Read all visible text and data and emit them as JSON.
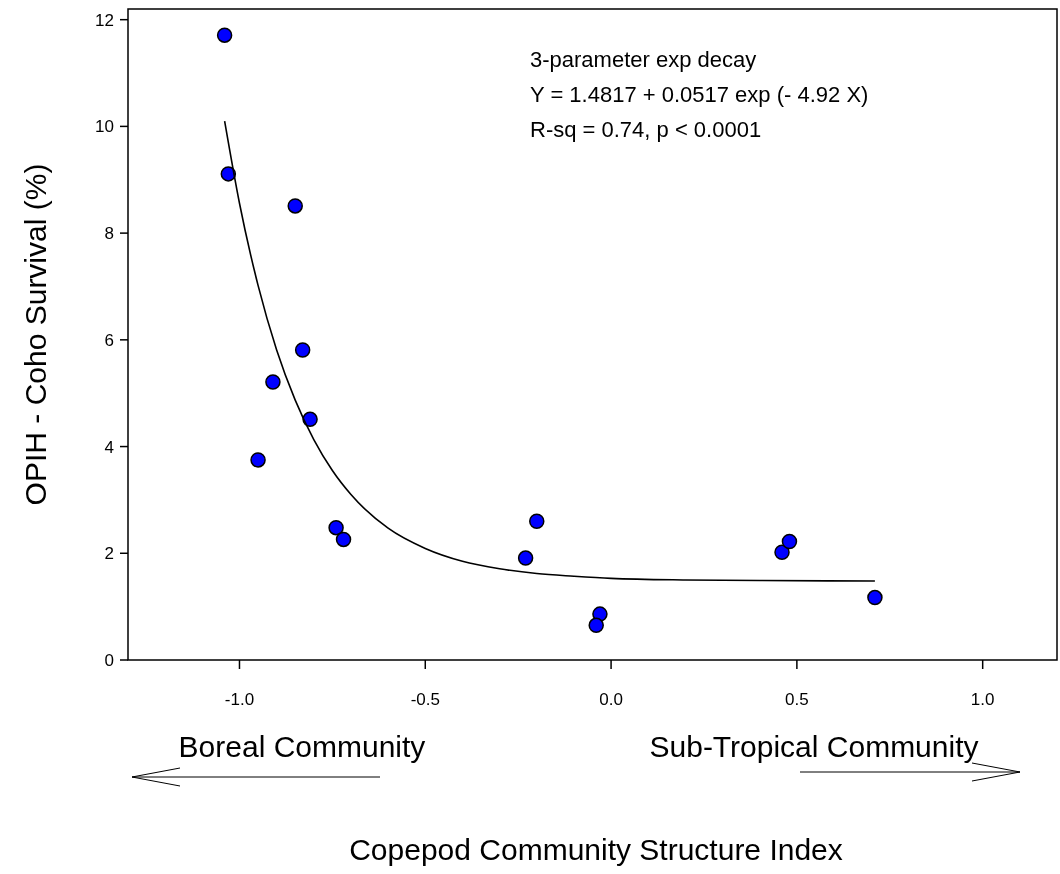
{
  "chart_data": {
    "type": "scatter",
    "xlabel": "Copepod Community Structure Index",
    "ylabel": "OPIH - Coho Survival (%)",
    "annotations": [
      "3-parameter exp decay",
      "Y = 1.4817 + 0.0517 exp (- 4.92 X)",
      "R-sq = 0.74, p < 0.0001",
      "Boreal Community",
      "Sub-Tropical Community"
    ],
    "xlim": [
      -1.3,
      1.2
    ],
    "ylim": [
      0,
      12.2
    ],
    "xticks": [
      {
        "value": -1,
        "label": "-1.0"
      },
      {
        "value": -0.5,
        "label": "-0.5"
      },
      {
        "value": 0,
        "label": "0.0"
      },
      {
        "value": 0.5,
        "label": "0.5"
      },
      {
        "value": 1,
        "label": "1.0"
      }
    ],
    "yticks": [
      0,
      2,
      4,
      6,
      8,
      10,
      12
    ],
    "grid": false,
    "marker": "circle",
    "series": [
      {
        "color": "#0000ff",
        "x": [
          -1.04,
          -1.03,
          -0.85,
          -0.83,
          -0.91,
          -0.81,
          -0.95,
          -0.74,
          -0.72,
          -0.23,
          -0.2,
          -0.03,
          -0.04,
          0.46,
          0.48,
          0.71
        ],
        "values": [
          11.71,
          9.11,
          8.51,
          5.81,
          5.21,
          4.51,
          3.75,
          2.48,
          2.26,
          1.91,
          2.6,
          0.86,
          0.65,
          2.02,
          2.22,
          1.17
        ]
      },
      {
        "type": "line",
        "color": "#000000",
        "line_style": "solid",
        "marker": "none",
        "x": [
          -1.04,
          -1,
          -0.95,
          -0.9,
          -0.85,
          -0.8,
          -0.75,
          -0.7,
          -0.6,
          -0.5,
          -0.4,
          -0.3,
          -0.2,
          -0.1,
          0,
          0.2,
          0.4,
          0.71
        ],
        "values": [
          10.1,
          8.56,
          7.02,
          5.81,
          4.87,
          4.13,
          3.55,
          3.1,
          2.47,
          2.09,
          1.85,
          1.71,
          1.62,
          1.57,
          1.53,
          1.5,
          1.49,
          1.48
        ]
      }
    ]
  }
}
